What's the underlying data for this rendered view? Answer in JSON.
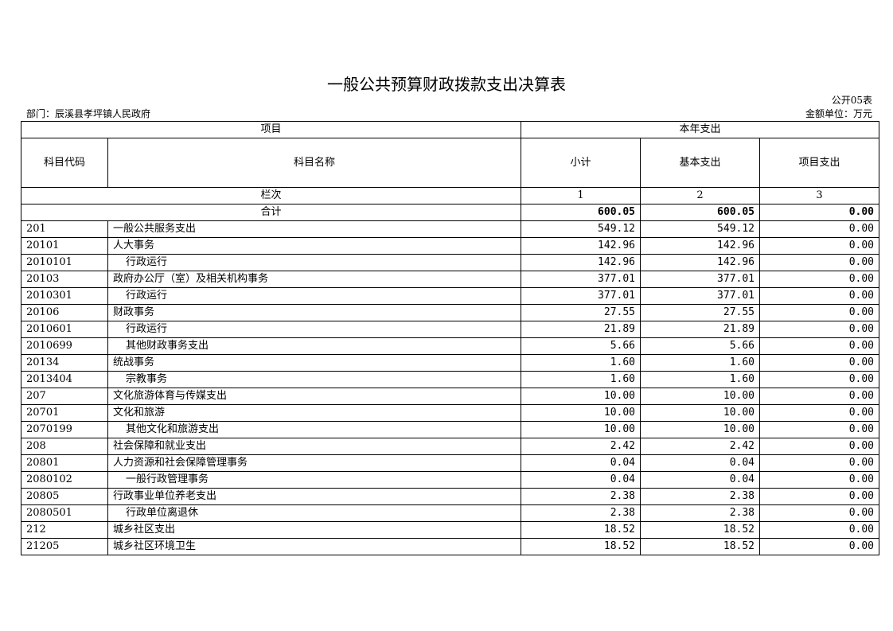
{
  "title": "一般公共预算财政拨款支出决算表",
  "table_no": "公开05表",
  "department": "部门：辰溪县孝坪镇人民政府",
  "unit": "金额单位：万元",
  "header": {
    "project": "项目",
    "current_year": "本年支出",
    "code": "科目代码",
    "name": "科目名称",
    "subtotal": "小计",
    "basic": "基本支出",
    "project_exp": "项目支出",
    "column_label": "栏次",
    "col1": "1",
    "col2": "2",
    "col3": "3"
  },
  "total": {
    "label": "合计",
    "subtotal": "600.05",
    "basic": "600.05",
    "project": "0.00"
  },
  "rows": [
    {
      "code": "201",
      "name": "一般公共服务支出",
      "indent": false,
      "subtotal": "549.12",
      "basic": "549.12",
      "project": "0.00"
    },
    {
      "code": "20101",
      "name": "人大事务",
      "indent": false,
      "subtotal": "142.96",
      "basic": "142.96",
      "project": "0.00"
    },
    {
      "code": "2010101",
      "name": "行政运行",
      "indent": true,
      "subtotal": "142.96",
      "basic": "142.96",
      "project": "0.00"
    },
    {
      "code": "20103",
      "name": "政府办公厅（室）及相关机构事务",
      "indent": false,
      "subtotal": "377.01",
      "basic": "377.01",
      "project": "0.00"
    },
    {
      "code": "2010301",
      "name": "行政运行",
      "indent": true,
      "subtotal": "377.01",
      "basic": "377.01",
      "project": "0.00"
    },
    {
      "code": "20106",
      "name": "财政事务",
      "indent": false,
      "subtotal": "27.55",
      "basic": "27.55",
      "project": "0.00"
    },
    {
      "code": "2010601",
      "name": "行政运行",
      "indent": true,
      "subtotal": "21.89",
      "basic": "21.89",
      "project": "0.00"
    },
    {
      "code": "2010699",
      "name": "其他财政事务支出",
      "indent": true,
      "subtotal": "5.66",
      "basic": "5.66",
      "project": "0.00"
    },
    {
      "code": "20134",
      "name": "统战事务",
      "indent": false,
      "subtotal": "1.60",
      "basic": "1.60",
      "project": "0.00"
    },
    {
      "code": "2013404",
      "name": "宗教事务",
      "indent": true,
      "subtotal": "1.60",
      "basic": "1.60",
      "project": "0.00"
    },
    {
      "code": "207",
      "name": "文化旅游体育与传媒支出",
      "indent": false,
      "subtotal": "10.00",
      "basic": "10.00",
      "project": "0.00"
    },
    {
      "code": "20701",
      "name": "文化和旅游",
      "indent": false,
      "subtotal": "10.00",
      "basic": "10.00",
      "project": "0.00"
    },
    {
      "code": "2070199",
      "name": "其他文化和旅游支出",
      "indent": true,
      "subtotal": "10.00",
      "basic": "10.00",
      "project": "0.00"
    },
    {
      "code": "208",
      "name": "社会保障和就业支出",
      "indent": false,
      "subtotal": "2.42",
      "basic": "2.42",
      "project": "0.00"
    },
    {
      "code": "20801",
      "name": "人力资源和社会保障管理事务",
      "indent": false,
      "subtotal": "0.04",
      "basic": "0.04",
      "project": "0.00"
    },
    {
      "code": "2080102",
      "name": "一般行政管理事务",
      "indent": true,
      "subtotal": "0.04",
      "basic": "0.04",
      "project": "0.00"
    },
    {
      "code": "20805",
      "name": "行政事业单位养老支出",
      "indent": false,
      "subtotal": "2.38",
      "basic": "2.38",
      "project": "0.00"
    },
    {
      "code": "2080501",
      "name": "行政单位离退休",
      "indent": true,
      "subtotal": "2.38",
      "basic": "2.38",
      "project": "0.00"
    },
    {
      "code": "212",
      "name": "城乡社区支出",
      "indent": false,
      "subtotal": "18.52",
      "basic": "18.52",
      "project": "0.00"
    },
    {
      "code": "21205",
      "name": "城乡社区环境卫生",
      "indent": false,
      "subtotal": "18.52",
      "basic": "18.52",
      "project": "0.00"
    }
  ]
}
